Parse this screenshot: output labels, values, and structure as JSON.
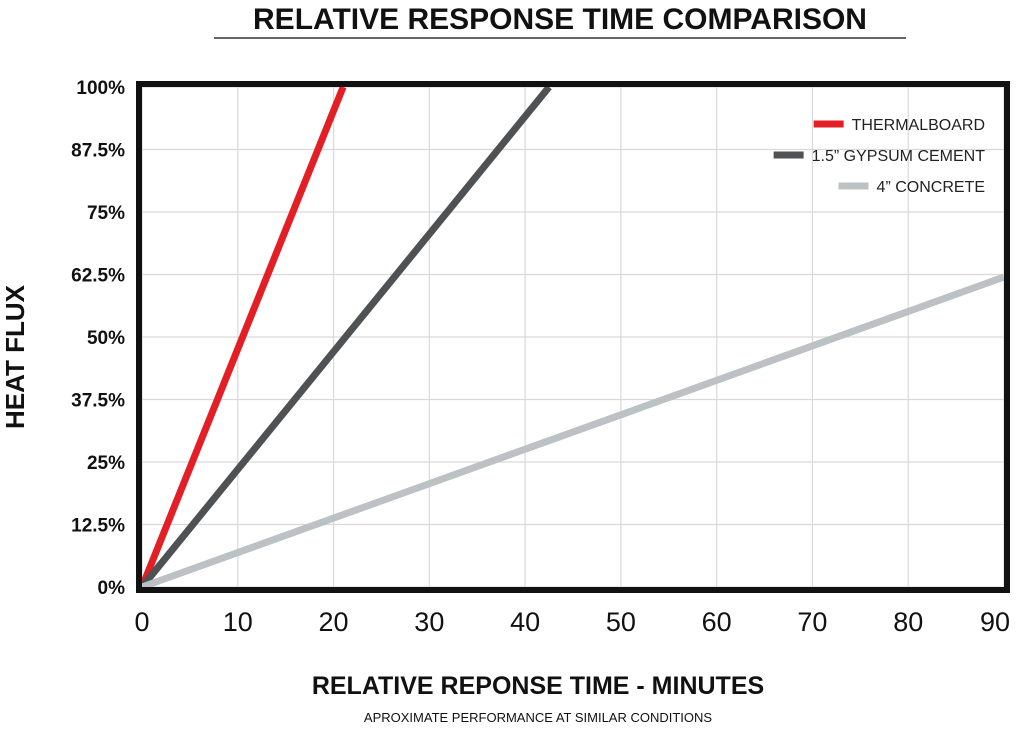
{
  "chart_data": {
    "type": "line",
    "title": "RELATIVE RESPONSE TIME COMPARISON",
    "xlabel": "RELATIVE REPONSE TIME - MINUTES",
    "ylabel": "HEAT FLUX",
    "subtitle": "APROXIMATE PERFORMANCE AT SIMILAR CONDITIONS",
    "xlim": [
      0,
      90
    ],
    "ylim": [
      0,
      100
    ],
    "x_ticks": [
      0,
      10,
      20,
      30,
      40,
      50,
      60,
      70,
      80,
      90
    ],
    "y_ticks": [
      0,
      12.5,
      25,
      37.5,
      50,
      62.5,
      75,
      87.5,
      100
    ],
    "y_tick_labels": [
      "0%",
      "12.5%",
      "25%",
      "37.5%",
      "50%",
      "62.5%",
      "75%",
      "87.5%",
      "100%"
    ],
    "grid": true,
    "legend_position": "top-right",
    "series": [
      {
        "name": "THERMALBOARD",
        "color": "#e31e24",
        "x": [
          0,
          21
        ],
        "y": [
          0,
          100
        ]
      },
      {
        "name": "1.5” GYPSUM CEMENT",
        "color": "#4f5254",
        "x": [
          0,
          42.5
        ],
        "y": [
          0,
          100
        ]
      },
      {
        "name": "4” CONCRETE",
        "color": "#bcc1c3",
        "x": [
          0,
          90
        ],
        "y": [
          0,
          62
        ]
      }
    ]
  }
}
